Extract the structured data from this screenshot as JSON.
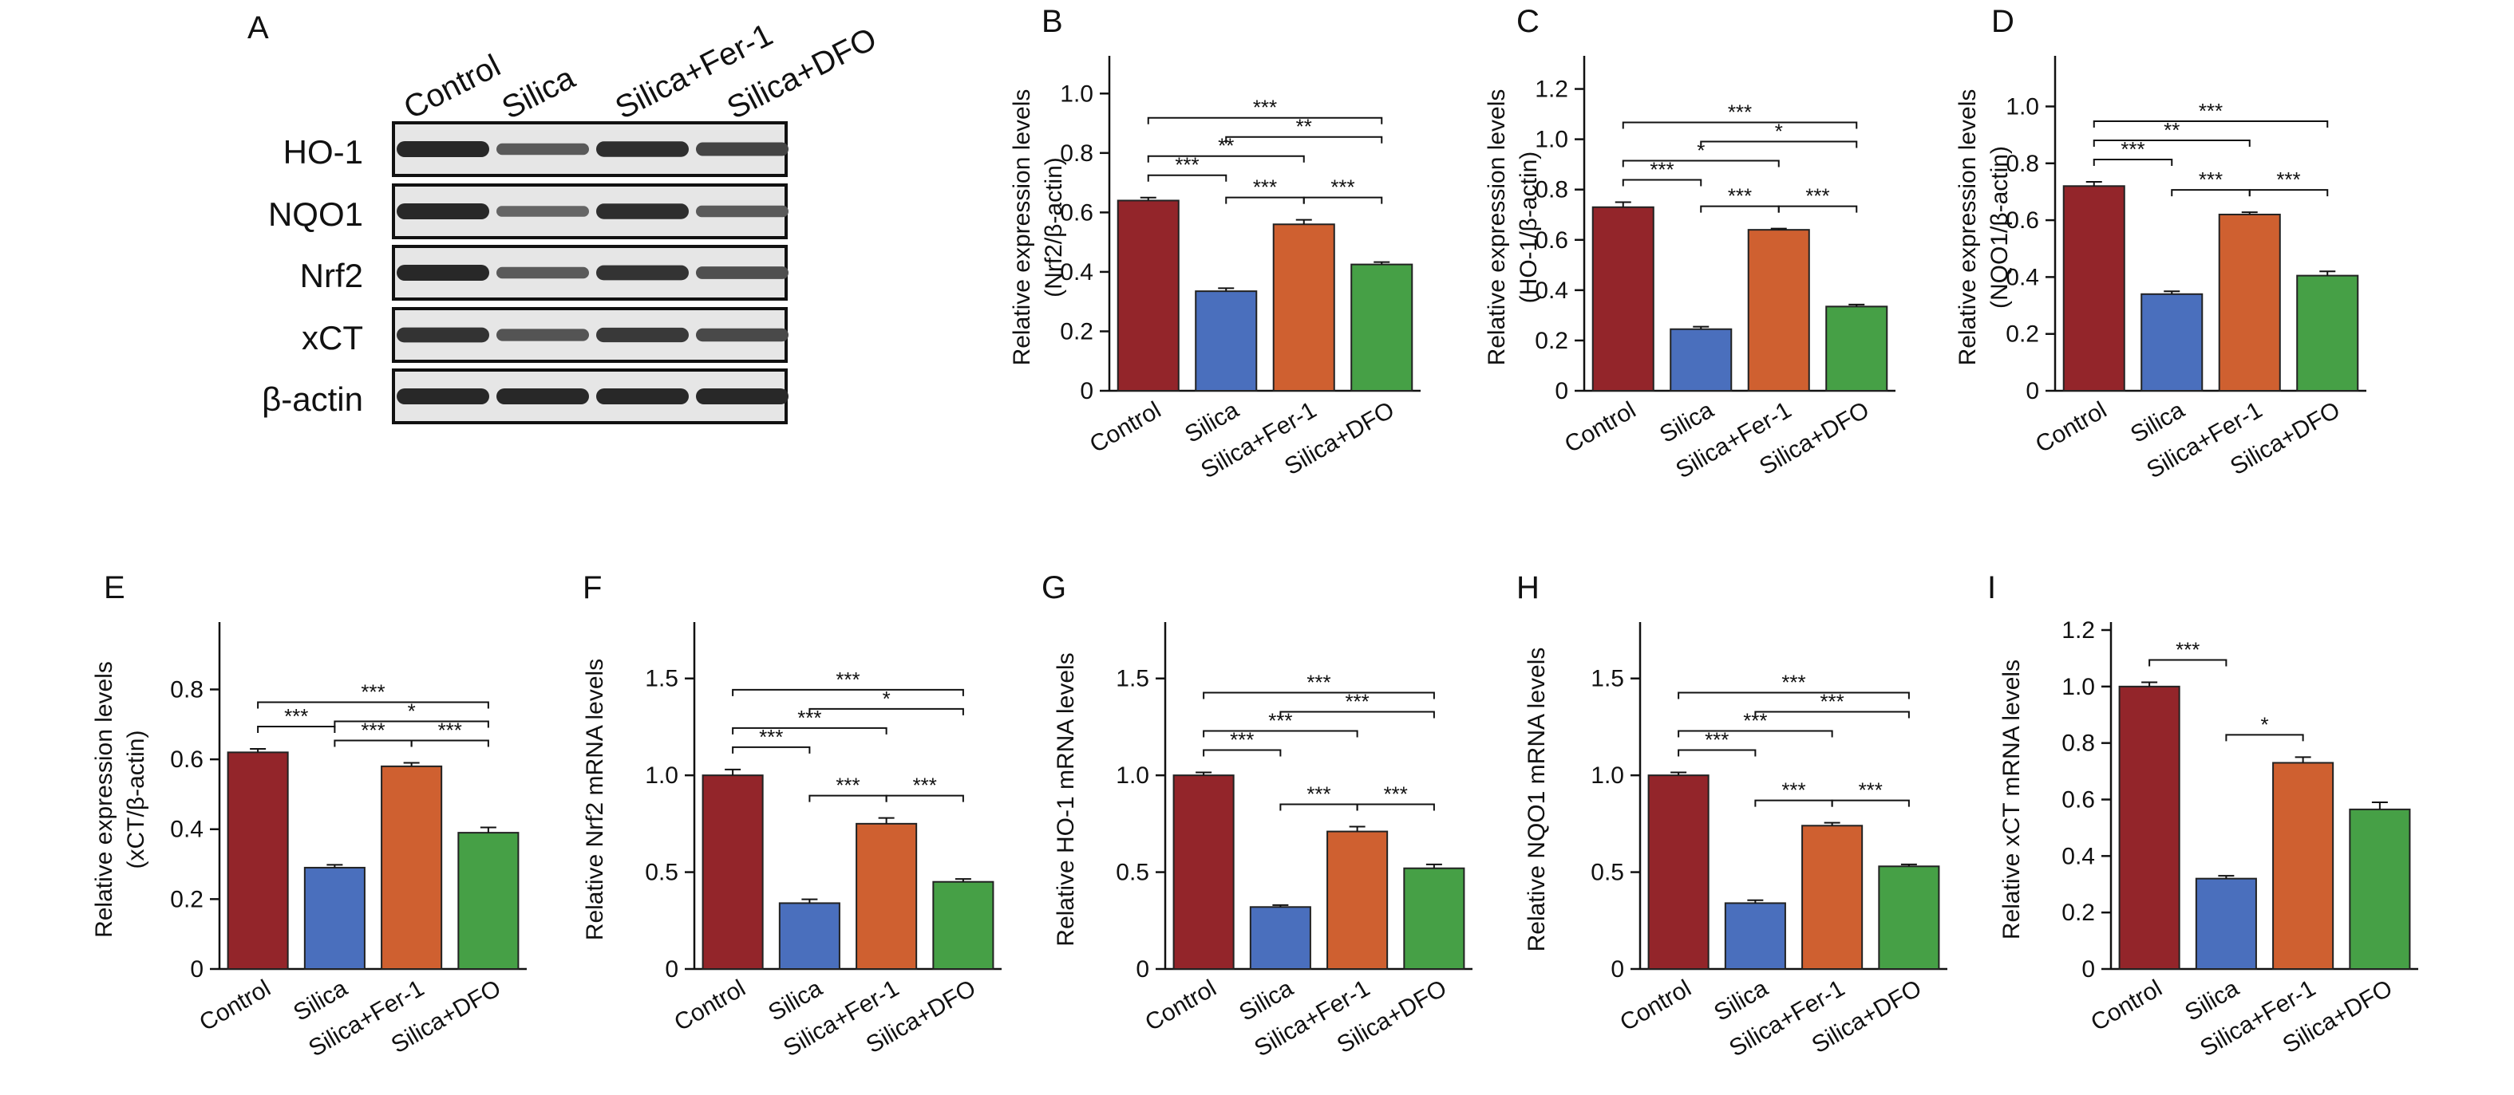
{
  "colors": {
    "Control": "#93252a",
    "Silica": "#4a6fbd",
    "Silica+Fer-1": "#cf6030",
    "Silica+DFO": "#46a046"
  },
  "blot": {
    "panel_letter": "A",
    "lanes": [
      "Control",
      "Silica",
      "Silica+Fer-1",
      "Silica+DFO"
    ],
    "rows": [
      {
        "label": "HO-1",
        "intensity": [
          1.0,
          0.55,
          0.95,
          0.75
        ]
      },
      {
        "label": "NQO1",
        "intensity": [
          1.0,
          0.45,
          0.95,
          0.55
        ]
      },
      {
        "label": "Nrf2",
        "intensity": [
          1.0,
          0.55,
          0.9,
          0.65
        ]
      },
      {
        "label": "xCT",
        "intensity": [
          0.9,
          0.6,
          0.85,
          0.7
        ]
      },
      {
        "label": "β-actin",
        "intensity": [
          1.0,
          1.0,
          1.0,
          1.0
        ]
      }
    ]
  },
  "chart_data": [
    {
      "panel": "B",
      "type": "bar",
      "categories": [
        "Control",
        "Silica",
        "Silica+Fer-1",
        "Silica+DFO"
      ],
      "values": [
        0.64,
        0.335,
        0.56,
        0.425
      ],
      "errors": [
        0.01,
        0.01,
        0.015,
        0.008
      ],
      "ylabel_lines": [
        "Relative expression levels",
        "(Nrf2/β-actin)"
      ],
      "ylim": [
        0,
        1.1
      ],
      "yticks": [
        "0",
        "0.2",
        "0.4",
        "0.6",
        "0.8",
        "1.0"
      ],
      "significance": [
        {
          "from": 0,
          "to": 1,
          "label": "***"
        },
        {
          "from": 0,
          "to": 2,
          "label": "**"
        },
        {
          "from": 0,
          "to": 3,
          "label": "***"
        },
        {
          "from": 1,
          "to": 2,
          "label": "***"
        },
        {
          "from": 1,
          "to": 3,
          "label": "**"
        },
        {
          "from": 2,
          "to": 3,
          "label": "***"
        }
      ]
    },
    {
      "panel": "C",
      "type": "bar",
      "categories": [
        "Control",
        "Silica",
        "Silica+Fer-1",
        "Silica+DFO"
      ],
      "values": [
        0.73,
        0.245,
        0.64,
        0.335
      ],
      "errors": [
        0.02,
        0.01,
        0.005,
        0.008
      ],
      "ylabel_lines": [
        "Relative expression levels",
        "(HO-1/β-actin)"
      ],
      "ylim": [
        0,
        1.3
      ],
      "yticks": [
        "0",
        "0.2",
        "0.4",
        "0.6",
        "0.8",
        "1.0",
        "1.2"
      ],
      "significance": [
        {
          "from": 0,
          "to": 1,
          "label": "***"
        },
        {
          "from": 0,
          "to": 2,
          "label": "*"
        },
        {
          "from": 0,
          "to": 3,
          "label": "***"
        },
        {
          "from": 1,
          "to": 2,
          "label": "***"
        },
        {
          "from": 1,
          "to": 3,
          "label": "*"
        },
        {
          "from": 2,
          "to": 3,
          "label": "***"
        }
      ]
    },
    {
      "panel": "D",
      "type": "bar",
      "categories": [
        "Control",
        "Silica",
        "Silica+Fer-1",
        "Silica+DFO"
      ],
      "values": [
        0.72,
        0.34,
        0.62,
        0.405
      ],
      "errors": [
        0.015,
        0.01,
        0.008,
        0.015
      ],
      "ylabel_lines": [
        "Relative expression levels",
        "(NQO1/β-actin)"
      ],
      "ylim": [
        0,
        1.15
      ],
      "yticks": [
        "0",
        "0.2",
        "0.4",
        "0.6",
        "0.8",
        "1.0"
      ],
      "significance": [
        {
          "from": 0,
          "to": 1,
          "label": "***"
        },
        {
          "from": 0,
          "to": 2,
          "label": "**"
        },
        {
          "from": 0,
          "to": 3,
          "label": "***"
        },
        {
          "from": 1,
          "to": 2,
          "label": "***"
        },
        {
          "from": 2,
          "to": 3,
          "label": "***"
        }
      ]
    },
    {
      "panel": "E",
      "type": "bar",
      "categories": [
        "Control",
        "Silica",
        "Silica+Fer-1",
        "Silica+DFO"
      ],
      "values": [
        0.62,
        0.29,
        0.58,
        0.39
      ],
      "errors": [
        0.01,
        0.008,
        0.01,
        0.015
      ],
      "ylabel_lines": [
        "Relative expression levels",
        "(xCT/β-actin)"
      ],
      "ylim": [
        0,
        0.97
      ],
      "yticks": [
        "0",
        "0.2",
        "0.4",
        "0.6",
        "0.8"
      ],
      "significance": [
        {
          "from": 0,
          "to": 1,
          "label": "***"
        },
        {
          "from": 0,
          "to": 3,
          "label": "***"
        },
        {
          "from": 1,
          "to": 2,
          "label": "***"
        },
        {
          "from": 1,
          "to": 3,
          "label": "*"
        },
        {
          "from": 2,
          "to": 3,
          "label": "***"
        }
      ]
    },
    {
      "panel": "F",
      "type": "bar",
      "categories": [
        "Control",
        "Silica",
        "Silica+Fer-1",
        "Silica+DFO"
      ],
      "values": [
        1.0,
        0.34,
        0.75,
        0.45
      ],
      "errors": [
        0.03,
        0.02,
        0.03,
        0.015
      ],
      "ylabel_lines": [
        "Relative Nrf2 mRNA levels"
      ],
      "ylim": [
        0,
        1.75
      ],
      "yticks": [
        "0",
        "0.5",
        "1.0",
        "1.5"
      ],
      "significance": [
        {
          "from": 0,
          "to": 1,
          "label": "***"
        },
        {
          "from": 0,
          "to": 2,
          "label": "***"
        },
        {
          "from": 0,
          "to": 3,
          "label": "***"
        },
        {
          "from": 1,
          "to": 2,
          "label": "***"
        },
        {
          "from": 1,
          "to": 3,
          "label": "*"
        },
        {
          "from": 2,
          "to": 3,
          "label": "***"
        }
      ]
    },
    {
      "panel": "G",
      "type": "bar",
      "categories": [
        "Control",
        "Silica",
        "Silica+Fer-1",
        "Silica+DFO"
      ],
      "values": [
        1.0,
        0.32,
        0.71,
        0.52
      ],
      "errors": [
        0.015,
        0.01,
        0.025,
        0.02
      ],
      "ylabel_lines": [
        "Relative HO-1 mRNA levels"
      ],
      "ylim": [
        0,
        1.75
      ],
      "yticks": [
        "0",
        "0.5",
        "1.0",
        "1.5"
      ],
      "significance": [
        {
          "from": 0,
          "to": 1,
          "label": "***"
        },
        {
          "from": 0,
          "to": 2,
          "label": "***"
        },
        {
          "from": 0,
          "to": 3,
          "label": "***"
        },
        {
          "from": 1,
          "to": 2,
          "label": "***"
        },
        {
          "from": 1,
          "to": 3,
          "label": "***"
        },
        {
          "from": 2,
          "to": 3,
          "label": "***"
        }
      ]
    },
    {
      "panel": "H",
      "type": "bar",
      "categories": [
        "Control",
        "Silica",
        "Silica+Fer-1",
        "Silica+DFO"
      ],
      "values": [
        1.0,
        0.34,
        0.74,
        0.53
      ],
      "errors": [
        0.015,
        0.015,
        0.015,
        0.01
      ],
      "ylabel_lines": [
        "Relative NQO1 mRNA levels"
      ],
      "ylim": [
        0,
        1.75
      ],
      "yticks": [
        "0",
        "0.5",
        "1.0",
        "1.5"
      ],
      "significance": [
        {
          "from": 0,
          "to": 1,
          "label": "***"
        },
        {
          "from": 0,
          "to": 2,
          "label": "***"
        },
        {
          "from": 0,
          "to": 3,
          "label": "***"
        },
        {
          "from": 1,
          "to": 2,
          "label": "***"
        },
        {
          "from": 1,
          "to": 3,
          "label": "***"
        },
        {
          "from": 2,
          "to": 3,
          "label": "***"
        }
      ]
    },
    {
      "panel": "I",
      "type": "bar",
      "categories": [
        "Control",
        "Silica",
        "Silica+Fer-1",
        "Silica+DFO"
      ],
      "values": [
        1.0,
        0.32,
        0.73,
        0.565
      ],
      "errors": [
        0.015,
        0.01,
        0.02,
        0.025
      ],
      "ylabel_lines": [
        "Relative xCT mRNA levels"
      ],
      "ylim": [
        0,
        1.2
      ],
      "yticks": [
        "0",
        "0.2",
        "0.4",
        "0.6",
        "0.8",
        "1.0",
        "1.2"
      ],
      "significance": [
        {
          "from": 0,
          "to": 1,
          "label": "***"
        },
        {
          "from": 1,
          "to": 2,
          "label": "*"
        }
      ]
    }
  ]
}
